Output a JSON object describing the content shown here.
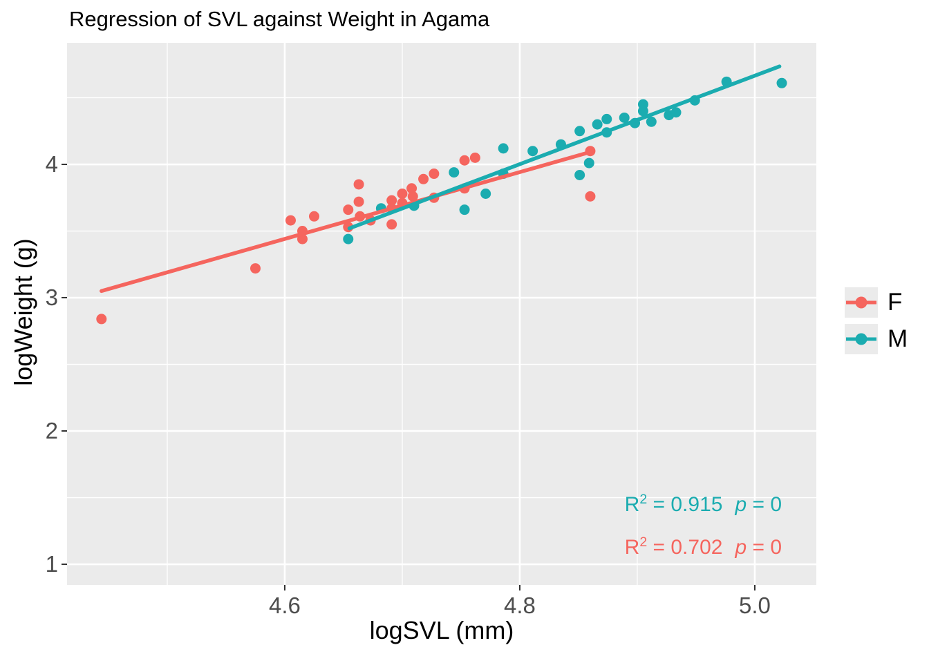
{
  "title": "Regression of SVL against Weight in Agama",
  "colors": {
    "panel_background": "#EBEBEB",
    "gridline": "#FFFFFF",
    "tick_text": "#4D4D4D",
    "tick_mark": "#333333",
    "title_text": "#000000"
  },
  "legend": {
    "items": [
      {
        "label": "F",
        "series": "F"
      },
      {
        "label": "M",
        "series": "M"
      }
    ]
  },
  "annotations": [
    {
      "series": "M",
      "r_label": "R",
      "r_sup": "2",
      "r_eq": " = 0.915",
      "p_label": "p",
      "p_eq": " = 0"
    },
    {
      "series": "F",
      "r_label": "R",
      "r_sup": "2",
      "r_eq": " = 0.702",
      "p_label": "p",
      "p_eq": " = 0"
    }
  ],
  "chart_data": {
    "type": "scatter",
    "title": "Regression of SVL against Weight in Agama",
    "xlabel": "logSVL (mm)",
    "ylabel": "logWeight (g)",
    "xlim": [
      4.4147,
      5.0524
    ],
    "ylim": [
      0.845,
      4.912
    ],
    "grid": true,
    "legend_position": "right",
    "x_ticks": [
      {
        "value": 4.6,
        "label": "4.6"
      },
      {
        "value": 4.8,
        "label": "4.8"
      },
      {
        "value": 5.0,
        "label": "5.0"
      }
    ],
    "y_ticks": [
      {
        "value": 1,
        "label": "1"
      },
      {
        "value": 2,
        "label": "2"
      },
      {
        "value": 3,
        "label": "3"
      },
      {
        "value": 4,
        "label": "4"
      }
    ],
    "x_minor_gridlines": [
      4.5,
      4.7,
      4.9
    ],
    "y_minor_gridlines": [
      1.5,
      2.5,
      3.5,
      4.5
    ],
    "series": [
      {
        "name": "F",
        "color": "#F5655E",
        "r_squared": 0.702,
        "p_value": 0,
        "regression_line": {
          "x1": 4.444,
          "y1": 3.05,
          "x2": 4.859,
          "y2": 4.09
        },
        "points": [
          [
            4.444,
            2.84
          ],
          [
            4.575,
            3.22
          ],
          [
            4.605,
            3.58
          ],
          [
            4.615,
            3.5
          ],
          [
            4.615,
            3.44
          ],
          [
            4.625,
            3.61
          ],
          [
            4.654,
            3.66
          ],
          [
            4.654,
            3.53
          ],
          [
            4.663,
            3.85
          ],
          [
            4.663,
            3.72
          ],
          [
            4.664,
            3.61
          ],
          [
            4.673,
            3.58
          ],
          [
            4.691,
            3.73
          ],
          [
            4.691,
            3.67
          ],
          [
            4.691,
            3.55
          ],
          [
            4.7,
            3.78
          ],
          [
            4.7,
            3.71
          ],
          [
            4.708,
            3.82
          ],
          [
            4.709,
            3.76
          ],
          [
            4.718,
            3.89
          ],
          [
            4.727,
            3.93
          ],
          [
            4.727,
            3.75
          ],
          [
            4.753,
            4.03
          ],
          [
            4.753,
            3.82
          ],
          [
            4.762,
            4.05
          ],
          [
            4.86,
            4.1
          ],
          [
            4.86,
            3.76
          ]
        ]
      },
      {
        "name": "M",
        "color": "#1BACB0",
        "r_squared": 0.915,
        "p_value": 0,
        "regression_line": {
          "x1": 4.655,
          "y1": 3.52,
          "x2": 5.021,
          "y2": 4.735
        },
        "points": [
          [
            4.654,
            3.44
          ],
          [
            4.682,
            3.67
          ],
          [
            4.71,
            3.69
          ],
          [
            4.744,
            3.94
          ],
          [
            4.753,
            3.66
          ],
          [
            4.771,
            3.78
          ],
          [
            4.786,
            4.12
          ],
          [
            4.786,
            3.93
          ],
          [
            4.811,
            4.1
          ],
          [
            4.835,
            4.15
          ],
          [
            4.851,
            4.25
          ],
          [
            4.851,
            3.92
          ],
          [
            4.859,
            4.01
          ],
          [
            4.866,
            4.3
          ],
          [
            4.874,
            4.34
          ],
          [
            4.874,
            4.24
          ],
          [
            4.889,
            4.35
          ],
          [
            4.898,
            4.31
          ],
          [
            4.905,
            4.45
          ],
          [
            4.905,
            4.4
          ],
          [
            4.912,
            4.32
          ],
          [
            4.927,
            4.37
          ],
          [
            4.933,
            4.39
          ],
          [
            4.949,
            4.48
          ],
          [
            4.976,
            4.62
          ],
          [
            5.023,
            4.61
          ]
        ]
      }
    ]
  }
}
